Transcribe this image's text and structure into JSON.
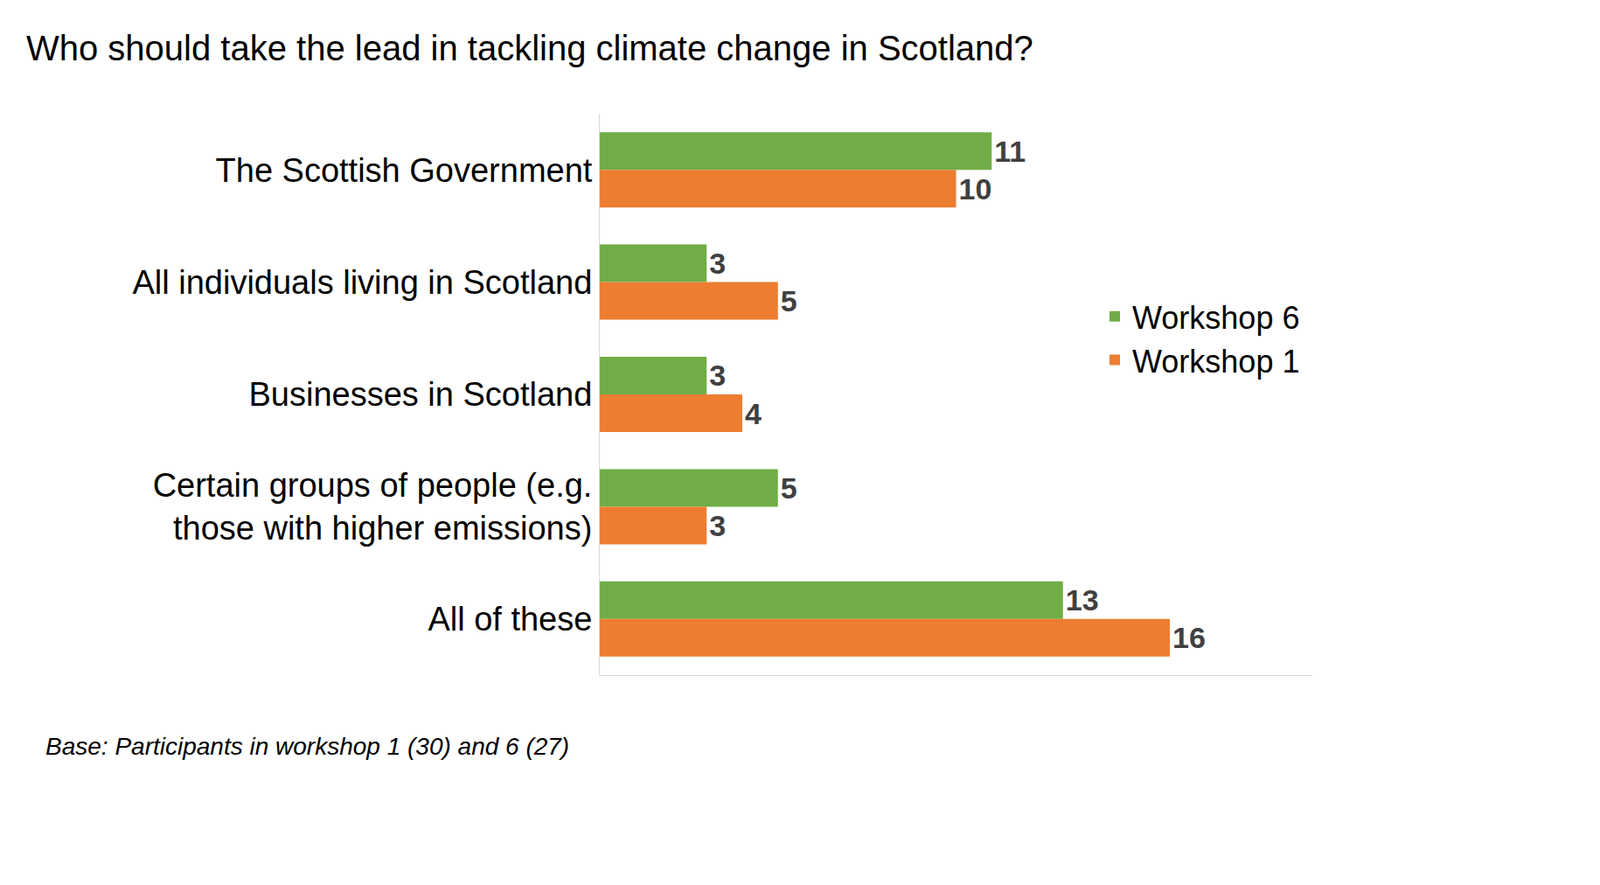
{
  "chart_data": {
    "type": "bar",
    "orientation": "horizontal",
    "title": "Who should take the lead in tackling climate change in Scotland?",
    "categories": [
      "The Scottish Government",
      "All individuals living in Scotland",
      "Businesses in Scotland",
      "Certain groups of people (e.g. those with higher emissions)",
      "All of these"
    ],
    "series": [
      {
        "name": "Workshop 6",
        "color": "#70ad47",
        "values": [
          11,
          3,
          3,
          5,
          13
        ]
      },
      {
        "name": "Workshop 1",
        "color": "#ed7d31",
        "values": [
          10,
          5,
          4,
          3,
          16
        ]
      }
    ],
    "xlim": [
      0,
      20
    ],
    "grid": false,
    "legend": "right",
    "data_labels": true,
    "tick_labels": "y",
    "annotations": [
      "Base: Participants in workshop 1 (30) and 6 (27)"
    ]
  }
}
